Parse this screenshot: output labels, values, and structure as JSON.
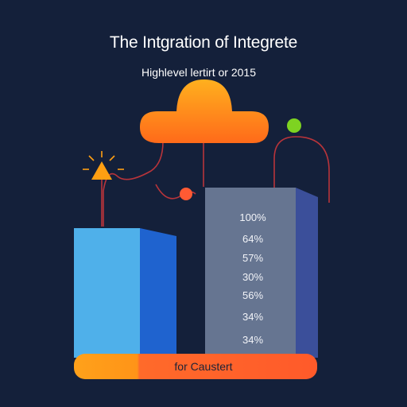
{
  "title": "The Intgration of Integrete",
  "subtitle": "Highlevel lertirt or 2015",
  "percent_labels": [
    "100%",
    "64%",
    "57%",
    "30%",
    "56%",
    "34%",
    "34%"
  ],
  "footer_label": "for Caustert",
  "colors": {
    "background": "#14203a",
    "cloud_top": "#ffb01e",
    "cloud_bottom": "#ff6a1a",
    "bar_left_front": "#4fb0ea",
    "bar_left_side": "#1f63cf",
    "bar_right_front": "#667591",
    "bar_right_side": "#3b4f9a",
    "base_left": "#ffa11a",
    "base_right": "#ff5a2a",
    "line_color": "#b8343a",
    "dot_green": "#7ed321",
    "dot_orange": "#ff5a33",
    "triangle": "#ff9f12"
  },
  "icons": [
    "cloud-icon",
    "warning-triangle-icon"
  ]
}
